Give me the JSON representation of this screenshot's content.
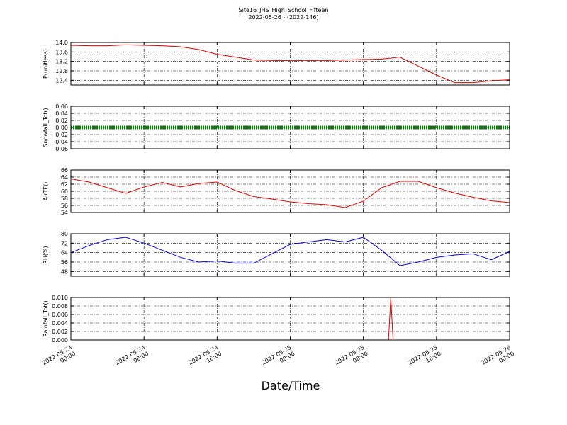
{
  "title": "Site16_JHS_High_School_Fifteen",
  "subtitle": "2022-05-26 - (2022-146)",
  "x_axis": {
    "label": "Date/Time",
    "xlim": [
      "2022-05-24 00:00",
      "2022-05-26 00:00"
    ],
    "xticks": [
      "2022-05-24 00:00",
      "2022-05-24 08:00",
      "2022-05-24 16:00",
      "2022-05-25 00:00",
      "2022-05-25 08:00",
      "2022-05-25 16:00",
      "2022-05-26 00:00"
    ]
  },
  "chart_data": [
    {
      "type": "line",
      "ylabel": "P(unitless)",
      "ylim": [
        12.2,
        14.0
      ],
      "grid": true,
      "yticks": [
        {
          "value": 12.4,
          "label": "12.4"
        },
        {
          "value": 12.8,
          "label": "12.8"
        },
        {
          "value": 13.2,
          "label": "13.2"
        },
        {
          "value": 13.6,
          "label": "13.6"
        },
        {
          "value": 14.0,
          "label": "14.0"
        }
      ],
      "x": [
        "2022-05-24 00:00",
        "2022-05-24 02:00",
        "2022-05-24 04:00",
        "2022-05-24 06:00",
        "2022-05-24 08:00",
        "2022-05-24 10:00",
        "2022-05-24 12:00",
        "2022-05-24 14:00",
        "2022-05-24 16:00",
        "2022-05-24 18:00",
        "2022-05-24 20:00",
        "2022-05-24 22:00",
        "2022-05-25 00:00",
        "2022-05-25 02:00",
        "2022-05-25 04:00",
        "2022-05-25 06:00",
        "2022-05-25 08:00",
        "2022-05-25 10:00",
        "2022-05-25 12:00",
        "2022-05-25 14:00",
        "2022-05-25 16:00",
        "2022-05-25 18:00",
        "2022-05-25 20:00",
        "2022-05-25 22:00",
        "2022-05-26 00:00"
      ],
      "series": [
        {
          "color": "#e00000",
          "values": [
            13.88,
            13.86,
            13.86,
            13.9,
            13.88,
            13.86,
            13.82,
            13.7,
            13.5,
            13.38,
            13.26,
            13.24,
            13.24,
            13.24,
            13.24,
            13.26,
            13.28,
            13.3,
            13.38,
            13.0,
            12.62,
            12.3,
            12.3,
            12.38,
            12.42
          ]
        }
      ]
    },
    {
      "type": "scatter",
      "ylabel": "Snowfall_Tot()",
      "ylim": [
        -0.06,
        0.06
      ],
      "grid": true,
      "yticks": [
        {
          "value": -0.06,
          "label": "−0.06"
        },
        {
          "value": -0.04,
          "label": "−0.04"
        },
        {
          "value": -0.02,
          "label": "−0.02"
        },
        {
          "value": 0,
          "label": "0.00"
        },
        {
          "value": 0.02,
          "label": "0.02"
        },
        {
          "value": 0.04,
          "label": "0.04"
        },
        {
          "value": 0.06,
          "label": "0.06"
        }
      ],
      "x": [
        "2022-05-24 00:00",
        "2022-05-26 00:00"
      ],
      "series": [
        {
          "color": "#008000",
          "values": [
            0,
            0
          ]
        }
      ]
    },
    {
      "type": "line",
      "ylabel": "AirTF()",
      "ylim": [
        54,
        66
      ],
      "grid": true,
      "yticks": [
        54,
        56,
        58,
        60,
        62,
        64,
        66
      ],
      "x": [
        "2022-05-24 00:00",
        "2022-05-24 02:00",
        "2022-05-24 04:00",
        "2022-05-24 06:00",
        "2022-05-24 08:00",
        "2022-05-24 10:00",
        "2022-05-24 12:00",
        "2022-05-24 14:00",
        "2022-05-24 16:00",
        "2022-05-24 18:00",
        "2022-05-24 20:00",
        "2022-05-24 22:00",
        "2022-05-25 00:00",
        "2022-05-25 02:00",
        "2022-05-25 04:00",
        "2022-05-25 06:00",
        "2022-05-25 08:00",
        "2022-05-25 10:00",
        "2022-05-25 12:00",
        "2022-05-25 14:00",
        "2022-05-25 16:00",
        "2022-05-25 18:00",
        "2022-05-25 20:00",
        "2022-05-25 22:00",
        "2022-05-26 00:00"
      ],
      "series": [
        {
          "color": "#e00000",
          "values": [
            63.5,
            62.6,
            61,
            59.4,
            61.2,
            62.5,
            61.2,
            62.2,
            62.6,
            60.2,
            58.5,
            57.8,
            57,
            56.5,
            56.2,
            55.4,
            57.2,
            61,
            62.8,
            62.8,
            61,
            59.5,
            58.3,
            57.3,
            56.8
          ]
        }
      ]
    },
    {
      "type": "line",
      "ylabel": "RH(%)",
      "ylim": [
        44,
        80
      ],
      "grid": true,
      "yticks": [
        48,
        56,
        64,
        72,
        80
      ],
      "x": [
        "2022-05-24 00:00",
        "2022-05-24 02:00",
        "2022-05-24 04:00",
        "2022-05-24 06:00",
        "2022-05-24 08:00",
        "2022-05-24 10:00",
        "2022-05-24 12:00",
        "2022-05-24 14:00",
        "2022-05-24 16:00",
        "2022-05-24 18:00",
        "2022-05-24 20:00",
        "2022-05-24 22:00",
        "2022-05-25 00:00",
        "2022-05-25 02:00",
        "2022-05-25 04:00",
        "2022-05-25 06:00",
        "2022-05-25 08:00",
        "2022-05-25 10:00",
        "2022-05-25 12:00",
        "2022-05-25 14:00",
        "2022-05-25 16:00",
        "2022-05-25 18:00",
        "2022-05-25 20:00",
        "2022-05-25 22:00",
        "2022-05-26 00:00"
      ],
      "series": [
        {
          "color": "#0000e0",
          "values": [
            64,
            70,
            75,
            77,
            72,
            66,
            60,
            56,
            57,
            55,
            55,
            63,
            71,
            73,
            75,
            73,
            77,
            66,
            53,
            56,
            60,
            62,
            63,
            58,
            65
          ]
        }
      ]
    },
    {
      "type": "line",
      "ylabel": "Rainfall_Tot()",
      "ylim": [
        0,
        0.01
      ],
      "grid": true,
      "yticks": [
        {
          "value": 0,
          "label": "0.000"
        },
        {
          "value": 0.002,
          "label": "0.002"
        },
        {
          "value": 0.004,
          "label": "0.004"
        },
        {
          "value": 0.006,
          "label": "0.006"
        },
        {
          "value": 0.008,
          "label": "0.008"
        },
        {
          "value": 0.01,
          "label": "0.010"
        }
      ],
      "x": [
        "2022-05-24 00:00",
        "2022-05-25 10:45",
        "2022-05-25 11:00",
        "2022-05-25 11:15",
        "2022-05-26 00:00"
      ],
      "series": [
        {
          "color": "#e00000",
          "values": [
            0,
            0,
            0.01,
            0,
            0
          ]
        }
      ]
    }
  ]
}
